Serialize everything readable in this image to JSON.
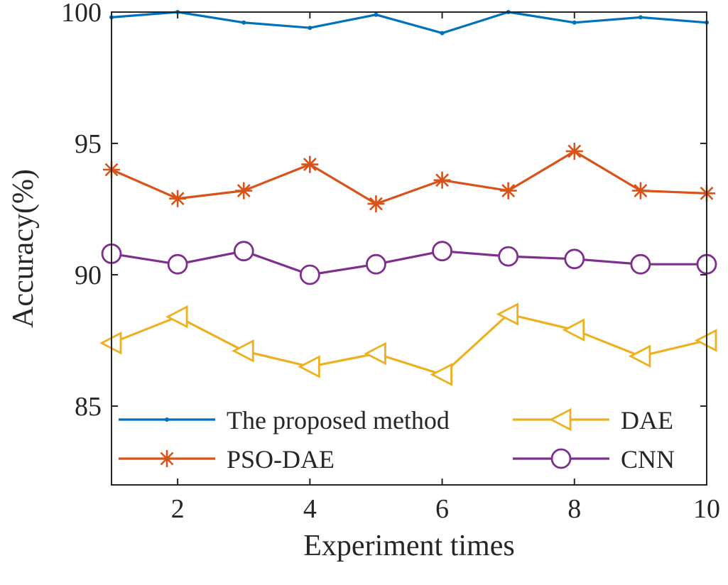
{
  "chart_data": {
    "type": "line",
    "title": "",
    "xlabel": "Experiment times",
    "ylabel": "Accuracy(%)",
    "xlim": [
      1,
      10
    ],
    "ylim": [
      82,
      100
    ],
    "xticks": [
      2,
      4,
      6,
      8,
      10
    ],
    "yticks": [
      85,
      90,
      95,
      100
    ],
    "grid": false,
    "legend_position": "bottom",
    "x": [
      1,
      2,
      3,
      4,
      5,
      6,
      7,
      8,
      9,
      10
    ],
    "series": [
      {
        "name": "The proposed method",
        "color": "#0072BD",
        "marker": "point",
        "values": [
          99.8,
          100.0,
          99.6,
          99.4,
          99.9,
          99.2,
          100.0,
          99.6,
          99.8,
          99.6
        ]
      },
      {
        "name": "PSO-DAE",
        "color": "#D95319",
        "marker": "asterisk",
        "values": [
          94.0,
          92.9,
          93.2,
          94.2,
          92.7,
          93.6,
          93.2,
          94.7,
          93.2,
          93.1
        ]
      },
      {
        "name": "DAE",
        "color": "#EDB120",
        "marker": "triangle-left",
        "values": [
          87.4,
          88.4,
          87.1,
          86.5,
          87.0,
          86.2,
          88.5,
          87.9,
          86.9,
          87.5
        ]
      },
      {
        "name": "CNN",
        "color": "#7E2F8E",
        "marker": "circle",
        "values": [
          90.8,
          90.4,
          90.9,
          90.0,
          90.4,
          90.9,
          90.7,
          90.6,
          90.4,
          90.4
        ]
      }
    ],
    "legend": {
      "entries": [
        "The proposed method",
        "DAE",
        "PSO-DAE",
        "CNN"
      ]
    }
  }
}
